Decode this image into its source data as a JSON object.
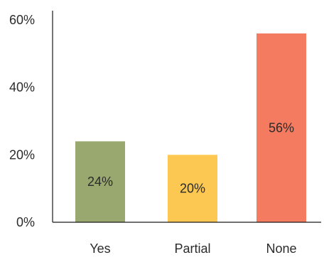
{
  "chart_data": {
    "type": "bar",
    "categories": [
      "Yes",
      "Partial",
      "None"
    ],
    "values": [
      24,
      20,
      56
    ],
    "data_labels": [
      "24%",
      "20%",
      "56%"
    ],
    "colors": [
      "#98a86e",
      "#fcc852",
      "#f47b5f"
    ],
    "ylim": [
      0,
      60
    ],
    "yticks": [
      0,
      20,
      40,
      60
    ],
    "ytick_labels": [
      "0%",
      "20%",
      "40%",
      "60%"
    ],
    "title": "",
    "xlabel": "",
    "ylabel": "",
    "grid": false,
    "legend": "none"
  },
  "style": {
    "axis_color": "#1a1a1a",
    "text_color": "#2b2b2b"
  }
}
